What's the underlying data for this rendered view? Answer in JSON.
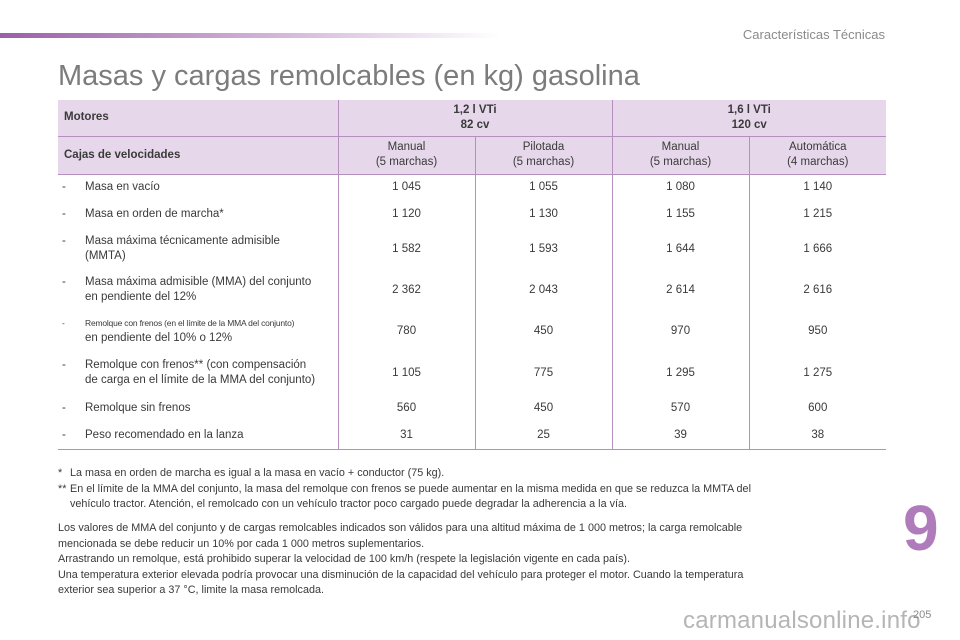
{
  "header": {
    "chapter_title": "Características Técnicas"
  },
  "page_title": "Masas y cargas remolcables (en kg) gasolina",
  "table": {
    "engines_label": "Motores",
    "engines": [
      {
        "line1": "1,2 l VTi",
        "line2": "82 cv"
      },
      {
        "line1": "1,6 l VTi",
        "line2": "120 cv"
      }
    ],
    "gearbox_label": "Cajas de velocidades",
    "gearboxes": [
      {
        "line1": "Manual",
        "line2": "(5 marchas)"
      },
      {
        "line1": "Pilotada",
        "line2": "(5 marchas)"
      },
      {
        "line1": "Manual",
        "line2": "(5 marchas)"
      },
      {
        "line1": "Automática",
        "line2": "(4 marchas)"
      }
    ],
    "rows": [
      {
        "dash": "-",
        "line1": "Masa en vacío",
        "line2": "",
        "values": [
          "1 045",
          "1 055",
          "1 080",
          "1 140"
        ]
      },
      {
        "dash": "-",
        "line1": "Masa en orden de marcha*",
        "line2": "",
        "values": [
          "1 120",
          "1 130",
          "1 155",
          "1 215"
        ]
      },
      {
        "dash": "-",
        "line1": "Masa máxima técnicamente admisible",
        "line2": "(MMTA)",
        "values": [
          "1 582",
          "1 593",
          "1 644",
          "1 666"
        ]
      },
      {
        "dash": "-",
        "line1": "Masa máxima admisible (MMA) del conjunto",
        "line2": "en pendiente del 12%",
        "values": [
          "2 362",
          "2 043",
          "2 614",
          "2 616"
        ]
      },
      {
        "dash": "-",
        "line1": "Remolque con frenos (en el límite de la MMA del conjunto)",
        "line2": "en pendiente del 10% o 12%",
        "values": [
          "780",
          "450",
          "970",
          "950"
        ]
      },
      {
        "dash": "-",
        "line1": "Remolque con frenos** (con compensación",
        "line2": "de carga en el límite de la MMA del conjunto)",
        "values": [
          "1 105",
          "775",
          "1 295",
          "1 275"
        ]
      },
      {
        "dash": "-",
        "line1": "Remolque sin frenos",
        "line2": "",
        "values": [
          "560",
          "450",
          "570",
          "600"
        ]
      },
      {
        "dash": "-",
        "line1": "Peso recomendado en la lanza",
        "line2": "",
        "values": [
          "31",
          "25",
          "39",
          "38"
        ]
      }
    ]
  },
  "footnotes": {
    "fn1_mark": "*",
    "fn1_text": "La masa en orden de marcha es igual a la masa en vacío + conductor (75 kg).",
    "fn2_mark": "**",
    "fn2_line1": "En el límite de la MMA del conjunto, la masa del remolque con frenos se puede aumentar en la misma medida en que se reduzca la MMTA del",
    "fn2_line2": "vehículo tractor. Atención, el remolcado con un vehículo tractor poco cargado puede degradar la adherencia a la vía."
  },
  "notes": {
    "p1_line1": "Los valores de MMA del conjunto y de cargas remolcables indicados son válidos para una altitud máxima de 1 000 metros; la carga remolcable",
    "p1_line2": "mencionada se debe reducir un 10% por cada 1 000 metros suplementarios.",
    "p2": "Arrastrando un remolque, está prohibido superar la velocidad de 100 km/h (respete la legislación vigente en cada país).",
    "p3_line1": "Una temperatura exterior elevada podría provocar una disminución de la capacidad del vehículo para proteger el motor. Cuando la temperatura",
    "p3_line2": "exterior sea superior a 37 °C, limite la masa remolcada."
  },
  "chapter_number": "9",
  "page_number": "205",
  "watermark": "carmanualsonline.info"
}
